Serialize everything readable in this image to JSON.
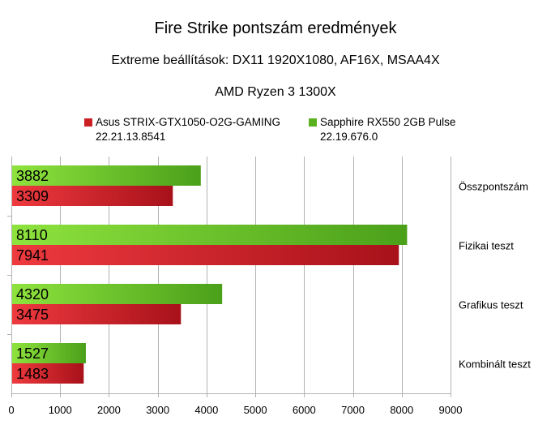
{
  "title": "Fire Strike pontszám eredmények",
  "subtitle1": "Extreme beállítások: DX11 1920X1080, AF16X, MSAA4X",
  "subtitle2": "AMD Ryzen 3 1300X",
  "legend": [
    {
      "line1": "Asus STRIX-GTX1050-O2G-GAMING",
      "line2": "22.21.13.8541",
      "color": "#cc1f24"
    },
    {
      "line1": "Sapphire RX550 2GB Pulse",
      "line2": "22.19.676.0",
      "color": "#5ab11e"
    }
  ],
  "chart_data": {
    "type": "bar",
    "orientation": "horizontal",
    "categories": [
      "Összpontszám",
      "Fizikai teszt",
      "Grafikus teszt",
      "Kombinált teszt"
    ],
    "series": [
      {
        "name": "Sapphire RX550 2GB Pulse 22.19.676.0",
        "values": [
          3882,
          8110,
          4320,
          1527
        ],
        "color": "#5ab11e"
      },
      {
        "name": "Asus STRIX-GTX1050-O2G-GAMING 22.21.13.8541",
        "values": [
          3309,
          7941,
          3475,
          1483
        ],
        "color": "#cc1f24"
      }
    ],
    "xlim": [
      0,
      9000
    ],
    "xticks": [
      0,
      1000,
      2000,
      3000,
      4000,
      5000,
      6000,
      7000,
      8000,
      9000
    ],
    "grid": true,
    "legend_position": "top",
    "category_labels_position": "right"
  }
}
